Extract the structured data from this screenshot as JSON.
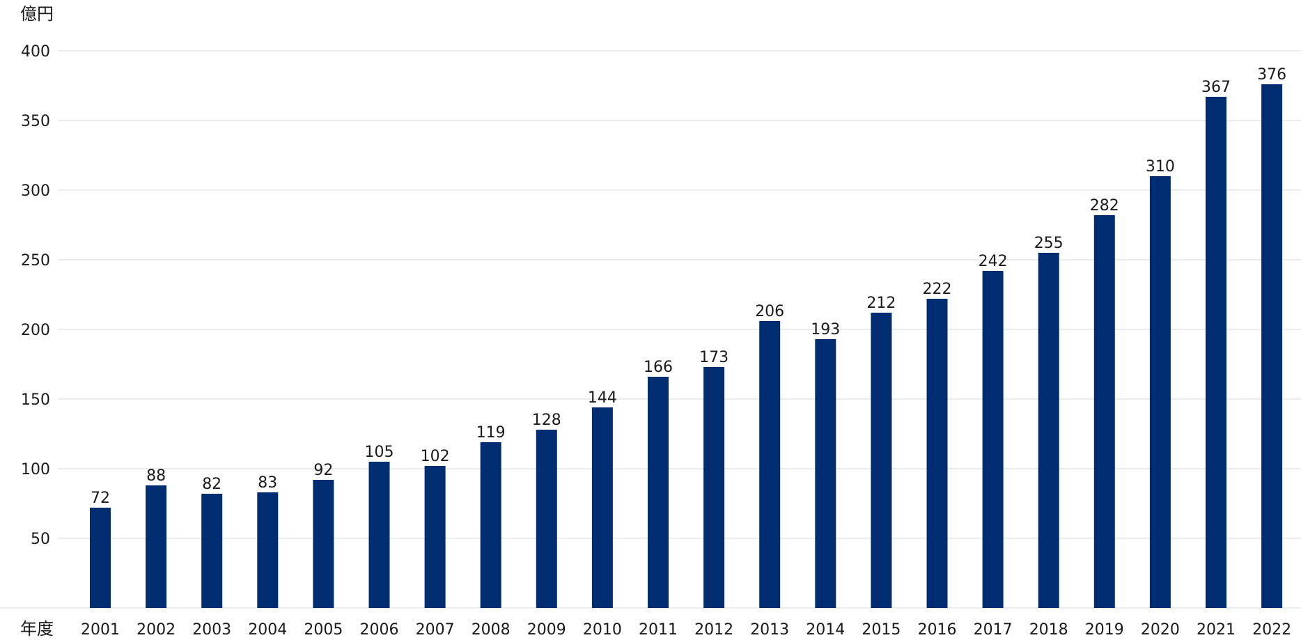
{
  "chart_data": {
    "type": "bar",
    "y_unit": "億円",
    "x_unit": "年度",
    "categories": [
      "2001",
      "2002",
      "2003",
      "2004",
      "2005",
      "2006",
      "2007",
      "2008",
      "2009",
      "2010",
      "2011",
      "2012",
      "2013",
      "2014",
      "2015",
      "2016",
      "2017",
      "2018",
      "2019",
      "2020",
      "2021",
      "2022"
    ],
    "values": [
      72,
      88,
      82,
      83,
      92,
      105,
      102,
      119,
      128,
      144,
      166,
      173,
      206,
      193,
      212,
      222,
      242,
      255,
      282,
      310,
      367,
      376
    ],
    "ylim": [
      0,
      400
    ],
    "yticks": [
      50,
      100,
      150,
      200,
      250,
      300,
      350,
      400
    ],
    "grid": true,
    "legend": "none",
    "bar_color": "#002d72",
    "grid_color": "#d9d9d9"
  }
}
